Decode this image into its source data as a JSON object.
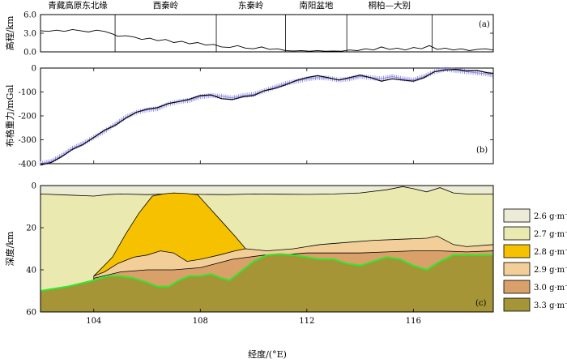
{
  "chart_data": [
    {
      "panel": "a",
      "panel_label": "(a)",
      "type": "line",
      "ylabel": "高程/km",
      "ylim": [
        0,
        6
      ],
      "yticks": [
        "6.0",
        "3.0",
        "0.0"
      ],
      "xlim": [
        102,
        119
      ],
      "region_labels": [
        {
          "text": "青藏高原东北缘",
          "x_from": 102.0,
          "x_to": 104.8
        },
        {
          "text": "西秦岭",
          "x_from": 104.8,
          "x_to": 108.6
        },
        {
          "text": "东秦岭",
          "x_from": 108.6,
          "x_to": 111.2
        },
        {
          "text": "南阳盆地",
          "x_from": 111.2,
          "x_to": 113.5
        },
        {
          "text": "桐柏—大别",
          "x_from": 113.5,
          "x_to": 116.7
        }
      ],
      "boundaries": [
        104.8,
        108.6,
        111.2,
        113.5,
        116.7
      ],
      "series": [
        {
          "x": [
            102.0,
            102.3,
            102.6,
            102.9,
            103.2,
            103.5,
            103.8,
            104.1,
            104.4,
            104.7,
            104.9,
            105.2,
            105.5,
            105.8,
            106.1,
            106.4,
            106.7,
            107.0,
            107.3,
            107.6,
            107.9,
            108.2,
            108.5,
            108.8,
            109.1,
            109.4,
            109.7,
            110.0,
            110.3,
            110.6,
            110.9,
            111.2,
            111.5,
            111.8,
            112.1,
            112.4,
            112.7,
            113.0,
            113.3,
            113.6,
            113.9,
            114.2,
            114.5,
            114.8,
            115.1,
            115.4,
            115.7,
            116.0,
            116.3,
            116.6,
            116.9,
            117.2,
            117.5,
            117.8,
            118.1,
            118.4,
            118.7,
            119.0
          ],
          "y": [
            3.4,
            3.3,
            3.5,
            3.3,
            3.6,
            3.4,
            3.2,
            3.5,
            3.3,
            2.9,
            2.5,
            2.6,
            2.4,
            2.0,
            2.2,
            1.8,
            2.0,
            1.5,
            1.7,
            1.3,
            1.5,
            1.1,
            1.2,
            0.8,
            0.7,
            1.0,
            0.6,
            0.5,
            0.8,
            0.4,
            0.5,
            0.2,
            0.15,
            0.2,
            0.1,
            0.2,
            0.1,
            0.15,
            0.1,
            0.3,
            0.2,
            0.5,
            0.3,
            0.8,
            0.4,
            0.6,
            0.3,
            0.7,
            0.5,
            1.0,
            0.4,
            0.6,
            0.3,
            0.5,
            0.2,
            0.4,
            0.5,
            0.3
          ]
        }
      ]
    },
    {
      "panel": "b",
      "panel_label": "(b)",
      "type": "line",
      "ylabel": "布格重力/mGal",
      "ylim": [
        -400,
        0
      ],
      "yticks": [
        "0",
        "-100",
        "-200",
        "-300",
        "-400"
      ],
      "xlim": [
        102,
        119
      ],
      "series": [
        {
          "style": "observed",
          "x": [
            102.0,
            102.4,
            102.8,
            103.2,
            103.6,
            104.0,
            104.4,
            104.8,
            105.2,
            105.6,
            106.0,
            106.4,
            106.8,
            107.2,
            107.6,
            108.0,
            108.4,
            108.8,
            109.2,
            109.6,
            110.0,
            110.4,
            110.8,
            111.2,
            111.6,
            112.0,
            112.4,
            112.8,
            113.2,
            113.6,
            114.0,
            114.4,
            114.8,
            115.2,
            115.6,
            116.0,
            116.4,
            116.8,
            117.2,
            117.6,
            118.0,
            118.4,
            118.8,
            119.0
          ],
          "y": [
            -400,
            -390,
            -365,
            -335,
            -315,
            -290,
            -265,
            -235,
            -205,
            -185,
            -175,
            -170,
            -150,
            -140,
            -135,
            -120,
            -115,
            -118,
            -125,
            -115,
            -110,
            -95,
            -80,
            -65,
            -55,
            -45,
            -40,
            -42,
            -50,
            -45,
            -35,
            -40,
            -45,
            -35,
            -45,
            -50,
            -35,
            -15,
            -5,
            -10,
            -15,
            -20,
            -25,
            -30
          ]
        },
        {
          "style": "calculated",
          "x": [
            102.0,
            102.4,
            102.8,
            103.2,
            103.6,
            104.0,
            104.4,
            104.8,
            105.2,
            105.6,
            106.0,
            106.4,
            106.8,
            107.2,
            107.6,
            108.0,
            108.4,
            108.8,
            109.2,
            109.6,
            110.0,
            110.4,
            110.8,
            111.2,
            111.6,
            112.0,
            112.4,
            112.8,
            113.2,
            113.6,
            114.0,
            114.4,
            114.8,
            115.2,
            115.6,
            116.0,
            116.4,
            116.8,
            117.2,
            117.6,
            118.0,
            118.4,
            118.8,
            119.0
          ],
          "y": [
            -405,
            -395,
            -370,
            -340,
            -320,
            -290,
            -260,
            -240,
            -210,
            -185,
            -172,
            -165,
            -148,
            -140,
            -130,
            -115,
            -112,
            -128,
            -132,
            -120,
            -115,
            -95,
            -85,
            -70,
            -52,
            -40,
            -32,
            -40,
            -50,
            -40,
            -30,
            -40,
            -55,
            -45,
            -50,
            -55,
            -40,
            -15,
            -8,
            -5,
            -12,
            -10,
            -20,
            -22
          ]
        }
      ]
    },
    {
      "panel": "c",
      "panel_label": "(c)",
      "type": "area",
      "ylabel": "深度/km",
      "xlabel": "经度/(°E)",
      "ylim": [
        60,
        0
      ],
      "xlim": [
        102,
        119
      ],
      "xticks": [
        "104",
        "108",
        "112",
        "116"
      ],
      "yticks": [
        "0",
        "20",
        "40",
        "60"
      ],
      "legend": [
        {
          "label": "2.6 g·m⁻³",
          "color": "#ecebd6"
        },
        {
          "label": "2.7 g·m⁻³",
          "color": "#e9e9b0"
        },
        {
          "label": "2.8 g·m⁻³",
          "color": "#f6c200"
        },
        {
          "label": "2.9 g·m⁻³",
          "color": "#f2cf98"
        },
        {
          "label": "3.0 g·m⁻³",
          "color": "#d9a06a"
        },
        {
          "label": "3.3 g·m⁻³",
          "color": "#a59537"
        }
      ],
      "boundaries": {
        "layer_2.6_base": {
          "x": [
            102,
            103,
            104,
            104.5,
            105,
            106,
            107,
            108,
            109,
            110,
            111,
            112,
            113,
            114,
            115,
            115.6,
            116,
            116.5,
            117,
            117.5,
            118,
            119
          ],
          "y": [
            4,
            4.5,
            5,
            4.3,
            4,
            4.3,
            3.8,
            4.2,
            4.3,
            4,
            4.1,
            4.2,
            4,
            3.5,
            2,
            0.5,
            1.5,
            3,
            1,
            3.5,
            4,
            4
          ]
        },
        "layer_2.8_body": {
          "x": [
            104.0,
            104.7,
            105.2,
            105.7,
            106.2,
            106.6,
            107.0,
            107.5,
            107.9,
            108.3,
            108.8,
            109.3,
            109.7,
            109.3,
            108.7,
            108.0,
            107.5,
            107.0,
            106.5,
            106.0,
            105.5,
            104.9,
            104.4
          ],
          "y": [
            43,
            34,
            23,
            13,
            5,
            4,
            3.5,
            3.8,
            4.4,
            10,
            17,
            24,
            30,
            31,
            33,
            35,
            36,
            32,
            31,
            33,
            34,
            37,
            41
          ]
        },
        "layer_2.9_top": {
          "x": [
            104.0,
            104.5,
            105.0,
            106.0,
            107.0,
            108.0,
            109.0,
            109.7,
            110.5,
            111.5,
            112.5,
            113.5,
            114.5,
            115.5,
            116.5,
            116.9,
            117.5,
            118.0,
            119.0
          ],
          "y": [
            43,
            37,
            34,
            31,
            31,
            32,
            30,
            30,
            31,
            30,
            28,
            27,
            26,
            25.5,
            25,
            24,
            28,
            29,
            28
          ]
        },
        "layer_3.0_top": {
          "x": [
            104.0,
            105.0,
            106.0,
            107.0,
            108.0,
            108.6,
            109.2,
            109.8,
            110.4,
            111.0,
            112.0,
            113.0,
            114.0,
            115.0,
            116.0,
            117.0,
            118.0,
            119.0
          ],
          "y": [
            44,
            41,
            40,
            40,
            39,
            37,
            35,
            34,
            33,
            33,
            32,
            32,
            32,
            31.5,
            31,
            31,
            31.5,
            31
          ]
        },
        "moho": {
          "x": [
            102,
            103,
            104,
            104.5,
            105,
            105.5,
            106,
            106.4,
            106.8,
            107.2,
            107.6,
            108.0,
            108.4,
            108.8,
            109.1,
            109.5,
            110,
            110.5,
            111,
            111.5,
            112,
            112.5,
            113,
            113.5,
            114,
            114.5,
            115,
            115.5,
            116,
            116.5,
            117,
            117.5,
            118,
            118.5,
            119
          ],
          "y": [
            50,
            48,
            45,
            43,
            43,
            44,
            46,
            48,
            48,
            45,
            43,
            43,
            42,
            44,
            45,
            41,
            36,
            33,
            32.5,
            33,
            34,
            35,
            35,
            37,
            38,
            36,
            34,
            35,
            38,
            40,
            36,
            33,
            33,
            33,
            33
          ]
        }
      }
    }
  ]
}
